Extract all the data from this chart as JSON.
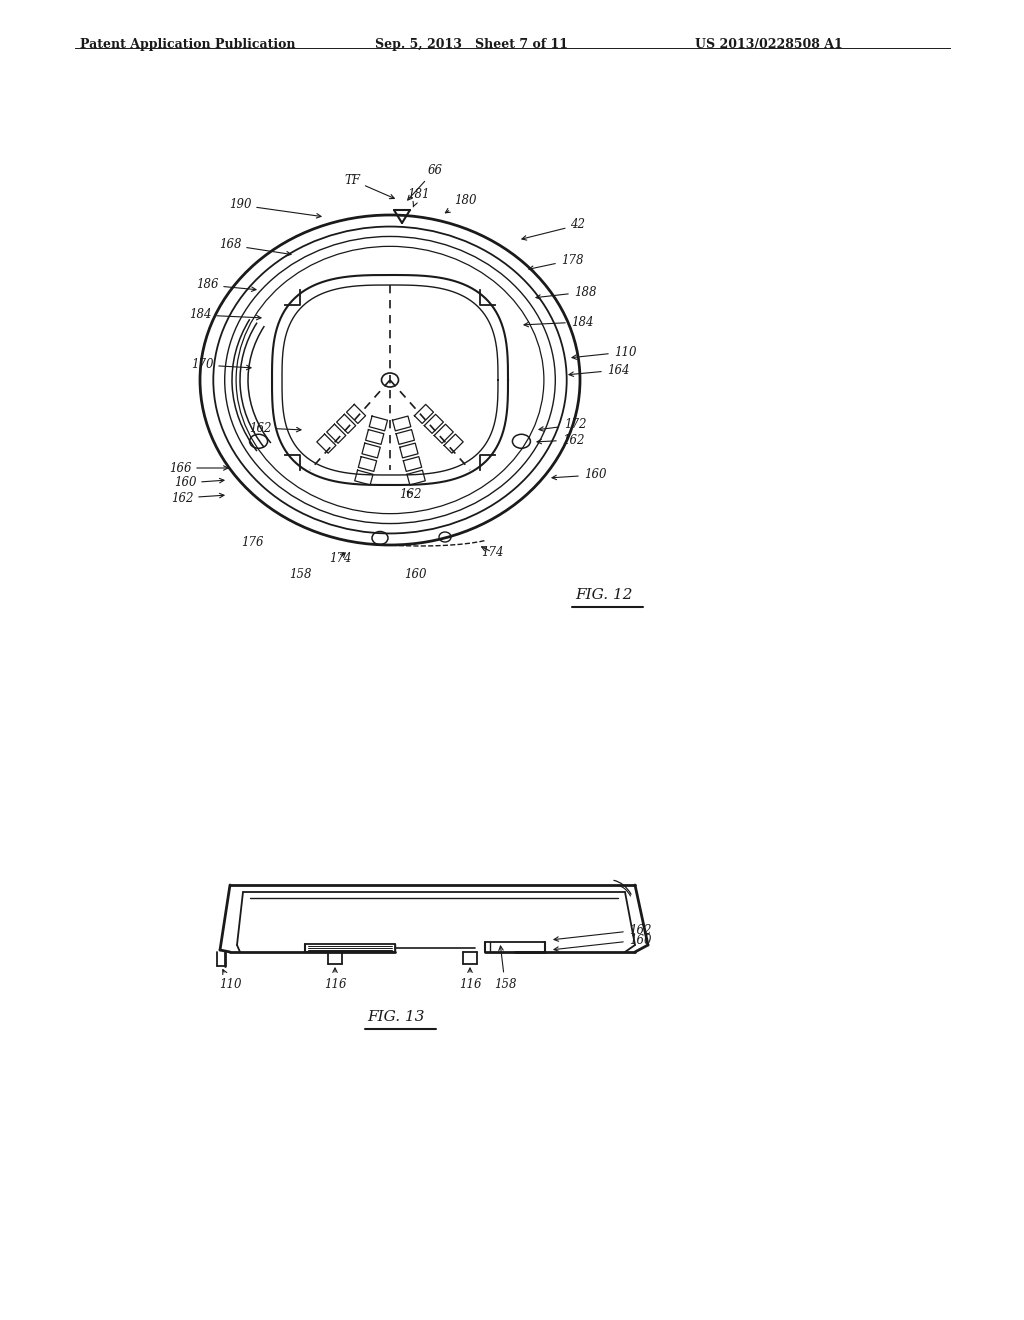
{
  "bg_color": "#ffffff",
  "line_color": "#1a1a1a",
  "header_left": "Patent Application Publication",
  "header_mid": "Sep. 5, 2013   Sheet 7 of 11",
  "header_right": "US 2013/0228508 A1"
}
